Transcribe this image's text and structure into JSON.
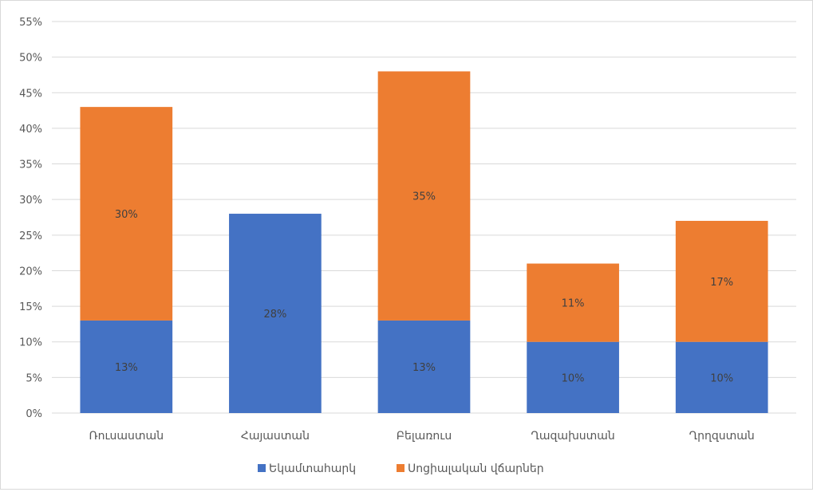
{
  "chart_data": {
    "type": "bar",
    "stacked": true,
    "categories": [
      "Ռուսաստան",
      "Հայաստան",
      "Բելառուս",
      "Ղազախստան",
      "Ղրղզստան"
    ],
    "series": [
      {
        "name": "Եկամտահարկ",
        "values": [
          13,
          28,
          13,
          10,
          10
        ],
        "labels": [
          "13%",
          "28%",
          "13%",
          "10%",
          "10%"
        ]
      },
      {
        "name": "Սոցիալական վճարներ",
        "values": [
          30,
          0,
          35,
          11,
          17
        ],
        "labels": [
          "30%",
          "",
          "35%",
          "11%",
          "17%"
        ]
      }
    ],
    "title": "",
    "xlabel": "",
    "ylabel": "",
    "ylim": [
      0,
      55
    ],
    "yticks": [
      0,
      5,
      10,
      15,
      20,
      25,
      30,
      35,
      40,
      45,
      50,
      55
    ],
    "ytick_labels": [
      "0%",
      "5%",
      "10%",
      "15%",
      "20%",
      "25%",
      "30%",
      "35%",
      "40%",
      "45%",
      "50%",
      "55%"
    ],
    "grid": true,
    "legend_position": "bottom",
    "colors": {
      "Եկամտահարկ": "#4472c4",
      "Սոցիալական վճարներ": "#ed7d31",
      "grid": "#d9d9d9"
    }
  }
}
